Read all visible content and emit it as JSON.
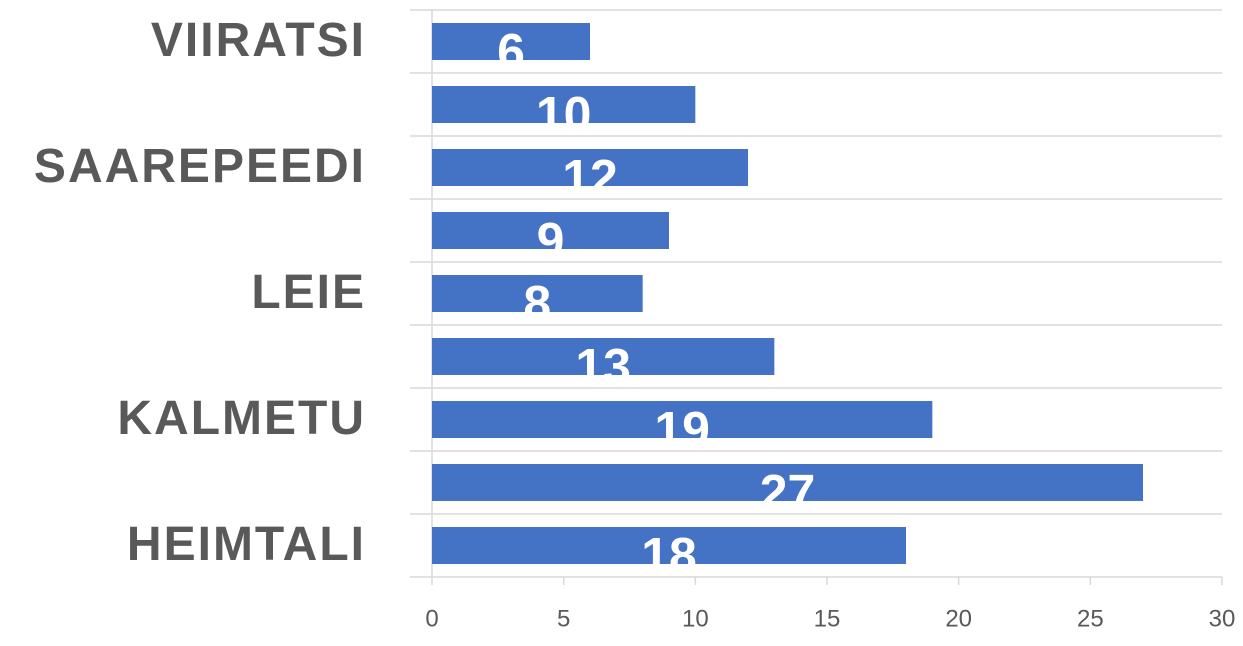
{
  "chart_data": {
    "type": "barh",
    "categories": [
      "HEIMTALI",
      null,
      "KALMETU",
      null,
      "LEIE",
      null,
      "SAAREPEEDI",
      null,
      "VIIRATSI"
    ],
    "values": [
      18,
      27,
      19,
      13,
      8,
      9,
      12,
      10,
      6
    ],
    "color": "#4472c4",
    "xlim": [
      0,
      30
    ],
    "xticks": [
      0,
      5,
      10,
      15,
      20,
      25,
      30
    ]
  }
}
